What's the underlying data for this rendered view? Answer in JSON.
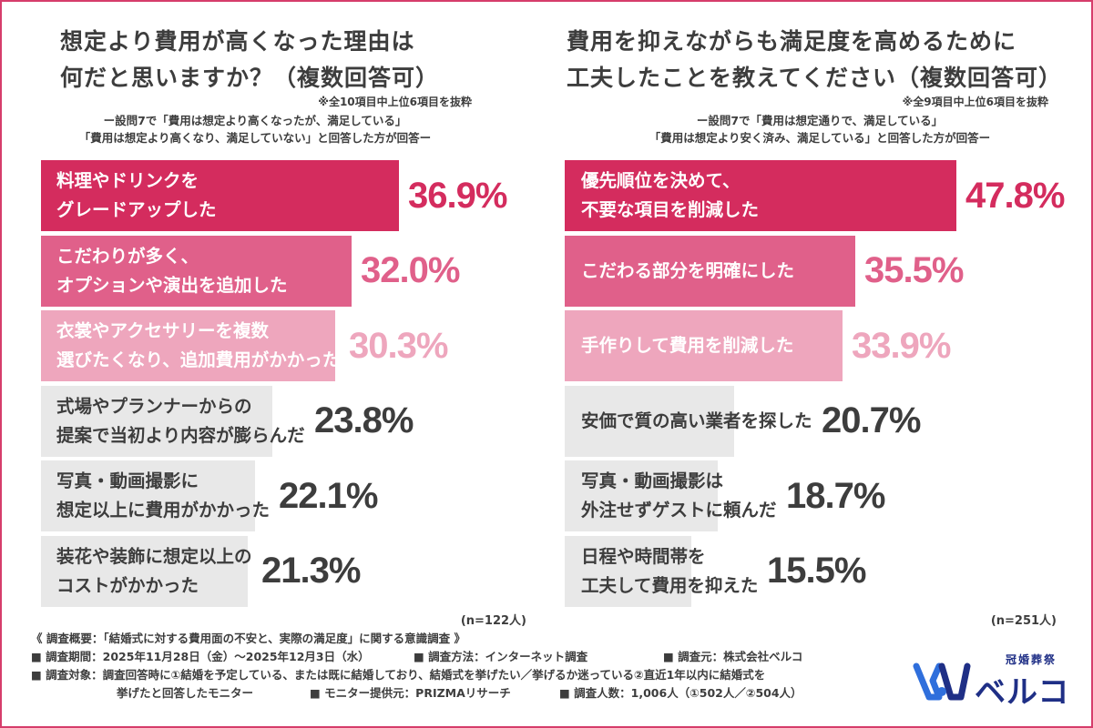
{
  "chart_data": [
    {
      "type": "bar",
      "title": "想定より費用が高くなった理由は\n何だと思いますか？（複数回答可）",
      "note": "※全10項目中上位6項目を抜粋",
      "description": "ー設問7で「費用は想定より高くなったが、満足している」\n「費用は想定より高くなり、満足していない」と回答した方が回答ー",
      "sample_size": "(n=122人)",
      "categories": [
        "料理やドリンクを\nグレードアップした",
        "こだわりが多く、\nオプションや演出を追加した",
        "衣裳やアクセサリーを複数\n選びたくなり、追加費用がかかった",
        "式場やプランナーからの\n提案で当初より内容が膨らんだ",
        "写真・動画撮影に\n想定以上に費用がかかった",
        "装花や装飾に想定以上の\nコストがかかった"
      ],
      "values": [
        36.9,
        32.0,
        30.3,
        23.8,
        22.1,
        21.3
      ],
      "value_labels": [
        "36.9%",
        "32.0%",
        "30.3%",
        "23.8%",
        "22.1%",
        "21.3%"
      ],
      "xlim": [
        0,
        46
      ],
      "bar_colors": [
        "#d42c5e",
        "#e0608a",
        "#eea6bd",
        "#e8e8e8",
        "#e8e8e8",
        "#e8e8e8"
      ],
      "label_colors": [
        "#ffffff",
        "#ffffff",
        "#ffffff",
        "#3d3d3d",
        "#3d3d3d",
        "#3d3d3d"
      ],
      "value_colors": [
        "#d42c5e",
        "#e0608a",
        "#eea6bd",
        "#3d3d3d",
        "#3d3d3d",
        "#3d3d3d"
      ]
    },
    {
      "type": "bar",
      "title": "費用を抑えながらも満足度を高めるために\n工夫したことを教えてください（複数回答可）",
      "note": "※全9項目中上位6項目を抜粋",
      "description": "ー設問7で「費用は想定通りで、満足している」\n「費用は想定より安く済み、満足している」と回答した方が回答ー",
      "sample_size": "(n=251人)",
      "categories": [
        "優先順位を決めて、\n不要な項目を削減した",
        "こだわる部分を明確にした",
        "手作りして費用を削減した",
        "安価で質の高い業者を探した",
        "写真・動画撮影は\n外注せずゲストに頼んだ",
        "日程や時間帯を\n工夫して費用を抑えた"
      ],
      "values": [
        47.8,
        35.5,
        33.9,
        20.7,
        18.7,
        15.5
      ],
      "value_labels": [
        "47.8%",
        "35.5%",
        "33.9%",
        "20.7%",
        "18.7%",
        "15.5%"
      ],
      "xlim": [
        0,
        49.5
      ],
      "bar_colors": [
        "#d42c5e",
        "#e0608a",
        "#eea6bd",
        "#e8e8e8",
        "#e8e8e8",
        "#e8e8e8"
      ],
      "label_colors": [
        "#ffffff",
        "#ffffff",
        "#ffffff",
        "#3d3d3d",
        "#3d3d3d",
        "#3d3d3d"
      ],
      "value_colors": [
        "#d42c5e",
        "#e0608a",
        "#eea6bd",
        "#3d3d3d",
        "#3d3d3d",
        "#3d3d3d"
      ]
    }
  ],
  "footer": {
    "summary": "《 調査概要：「結婚式に対する費用面の不安と、実際の満足度」に関する意識調査 》",
    "period": "■ 調査期間：2025年11月28日（金）〜2025年12月3日（水）",
    "method": "■ 調査方法：インターネット調査",
    "organizer": "■ 調査元：株式会社ベルコ",
    "target_1": "■ 調査対象：調査回答時に①結婚を予定している、または既に結婚しており、結婚式を挙げたい／挙げるか迷っている②直近1年以内に結婚式を",
    "target_2": "挙げたと回答したモニター",
    "monitor": "■ モニター提供元：PRIZMAリサーチ",
    "count": "■ 調査人数：1,006人（①502人／②504人）"
  },
  "logo": {
    "sub": "冠婚葬祭",
    "name": "ベルコ",
    "brand_color": "#1f2f86",
    "accent_color": "#2f6fdc"
  },
  "colors": {
    "frame": "#d63d6b",
    "text": "#3d3d3d"
  }
}
